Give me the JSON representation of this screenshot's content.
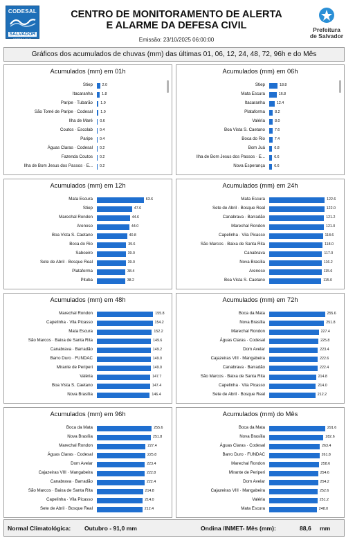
{
  "header": {
    "title_line1": "CENTRO DE MONITORAMENTO DE ALERTA",
    "title_line2": "E ALARME DA DEFESA CIVIL",
    "emission": "Emissão: 23/10/2025 06:00:00",
    "logo_left_top": "CODESAL",
    "logo_left_mid": "SALVADOR",
    "logo_left_bottom": "DEFESA CIVIL",
    "logo_right_line1": "Prefeitura",
    "logo_right_line2": "de Salvador"
  },
  "subtitle": "Gráficos dos acumulados de chuvas (mm) das últimas 01, 06, 12, 24, 48, 72, 96h e do Mês",
  "colors": {
    "bar": "#1f6fd0",
    "logo": "#1e6fb8"
  },
  "chart_data": [
    {
      "type": "bar",
      "title": "Acumulados (mm) em 01h",
      "categories": [
        "Stiep",
        "Itacaranha",
        "Paripe · Tubarão",
        "São Tomé de Paripe · Codesal",
        "Ilha de Maré",
        "Coutos · Escolab",
        "Paripe",
        "Águas Claras · Codesal",
        "Fazenda Coutos",
        "Ilha de Bom Jesus dos Passos · E..."
      ],
      "values": [
        2.0,
        1.8,
        1.0,
        1.0,
        0.6,
        0.4,
        0.4,
        0.2,
        0.2,
        0.2
      ],
      "labels": [
        "2.0",
        "1.8",
        "1.0",
        "1.0",
        "0.6",
        "0.4",
        "0.4",
        "0.2",
        "0.2",
        "0.2"
      ],
      "scale_max": 42
    },
    {
      "type": "bar",
      "title": "Acumulados (mm) em 06h",
      "categories": [
        "Stiep",
        "Mata Escura",
        "Itacaranha",
        "Plataforma",
        "Valéria",
        "Boa Vista S. Caetano",
        "Boca do Rio",
        "Bom Juá",
        "Ilha de Bom Jesus dos Passos · E...",
        "Nova Esperança"
      ],
      "values": [
        18.8,
        16.8,
        12.4,
        8.2,
        8.0,
        7.6,
        7.4,
        6.8,
        6.6,
        6.6
      ],
      "labels": [
        "18.8",
        "16.8",
        "12.4",
        "8.2",
        "8.0",
        "7.6",
        "7.4",
        "6.8",
        "6.6",
        "6.6"
      ],
      "scale_max": 150
    },
    {
      "type": "bar",
      "title": "Acumulados (mm) em 12h",
      "categories": [
        "Mata Escura",
        "Stiep",
        "Marechal Rondon",
        "Arenoso",
        "Boa Vista S. Caetano",
        "Boca do Rio",
        "Saboeiro",
        "Sete de Abril · Bosque Real",
        "Plataforma",
        "Pituba"
      ],
      "values": [
        63.6,
        47.6,
        44.6,
        44.0,
        40.8,
        39.6,
        39.0,
        39.0,
        38.4,
        38.2
      ],
      "labels": [
        "63.6",
        "47.6",
        "44.6",
        "44.0",
        "40.8",
        "39.6",
        "39.0",
        "39.0",
        "38.4",
        "38.2"
      ],
      "scale_max": 90
    },
    {
      "type": "bar",
      "title": "Acumulados (mm) em 24h",
      "categories": [
        "Mata Escura",
        "Sete de Abril · Bosque Real",
        "Canabrava · Barradão",
        "Marechal Rondon",
        "Capelinha · Vila Picasso",
        "São Marcos · Baixa de Santa Rita",
        "Canabrava",
        "Nova Brasília",
        "Arenoso",
        "Boa Vista S. Caetano"
      ],
      "values": [
        122.6,
        122.0,
        121.2,
        121.0,
        118.6,
        118.0,
        117.0,
        116.2,
        115.6,
        115.0
      ],
      "labels": [
        "122.6",
        "122.0",
        "121.2",
        "121.0",
        "118.6",
        "118.0",
        "117.0",
        "116.2",
        "115.6",
        "115.0"
      ],
      "scale_max": 147
    },
    {
      "type": "bar",
      "title": "Acumulados (mm) em 48h",
      "categories": [
        "Marechal Rondon",
        "Capelinha · Vila Picasso",
        "Mata Escura",
        "São Marcos · Baixa de Santa Rita",
        "Canabrava · Barradão",
        "Barro Duro · FUNDAC",
        "Mirante de Periperi",
        "Valéria",
        "Boa Vista S. Caetano",
        "Nova Brasília"
      ],
      "values": [
        155.8,
        154.2,
        152.2,
        149.6,
        149.2,
        149.0,
        149.0,
        147.7,
        147.4,
        146.4
      ],
      "labels": [
        "155.8",
        "154.2",
        "152.2",
        "149.6",
        "149.2",
        "149.0",
        "149.0",
        "147.7",
        "147.4",
        "146.4"
      ],
      "scale_max": 184
    },
    {
      "type": "bar",
      "title": "Acumulados (mm) em 72h",
      "categories": [
        "Boca da Mata",
        "Nova Brasília",
        "Marechal Rondon",
        "Águas Claras · Codesal",
        "Dom Avelar",
        "Cajazeiras VIII · Mangabeira",
        "Canabrava · Barradão",
        "São Marcos · Baixa de Santa Rita",
        "Capelinha · Vila Picasso",
        "Sete de Abril · Bosque Real"
      ],
      "values": [
        255.6,
        251.8,
        227.4,
        225.8,
        223.4,
        222.6,
        222.4,
        214.8,
        214.0,
        212.2
      ],
      "labels": [
        "255.6",
        "251.8",
        "227.4",
        "225.8",
        "223.4",
        "222.6",
        "222.4",
        "214.8",
        "214.0",
        "212.2"
      ],
      "scale_max": 305
    },
    {
      "type": "bar",
      "title": "Acumulados (mm) em 96h",
      "categories": [
        "Boca da Mata",
        "Nova Brasília",
        "Marechal Rondon",
        "Águas Claras · Codesal",
        "Dom Avelar",
        "Cajazeiras VIII · Mangabeira",
        "Canabrava · Barradão",
        "São Marcos · Baixa de Santa Rita",
        "Capelinha · Vila Picasso",
        "Sete de Abril · Bosque Real"
      ],
      "values": [
        255.6,
        251.8,
        227.4,
        225.8,
        223.4,
        222.8,
        222.4,
        214.8,
        214.0,
        212.4
      ],
      "labels": [
        "255.6",
        "251.8",
        "227.4",
        "225.8",
        "223.4",
        "222.8",
        "222.4",
        "214.8",
        "214.0",
        "212.4"
      ],
      "scale_max": 310
    },
    {
      "type": "bar",
      "title": "Acumulados (mm) do Mês",
      "categories": [
        "Boca da Mata",
        "Nova Brasília",
        "Águas Claras · Codesal",
        "Barro Duro · FUNDAC",
        "Marechal Rondon",
        "Mirante de Periperi",
        "Dom Avelar",
        "Cajazeiras VIII · Mangabeira",
        "Valéria",
        "Mata Escura"
      ],
      "values": [
        291.6,
        282.6,
        263.4,
        261.8,
        258.6,
        254.6,
        254.2,
        252.6,
        251.2,
        248.0
      ],
      "labels": [
        "291.6",
        "282.6",
        "263.4",
        "261.8",
        "258.6",
        "254.6",
        "254.2",
        "252.6",
        "251.2",
        "248.0"
      ],
      "scale_max": 346
    }
  ],
  "footer": {
    "climatological_label": "Normal Climatológica:",
    "climatological_value": "Outubro - 91,0 mm",
    "ondina_label": "Ondina /INMET- Mês (mm):",
    "ondina_value": "88,6",
    "ondina_unit": "mm"
  }
}
